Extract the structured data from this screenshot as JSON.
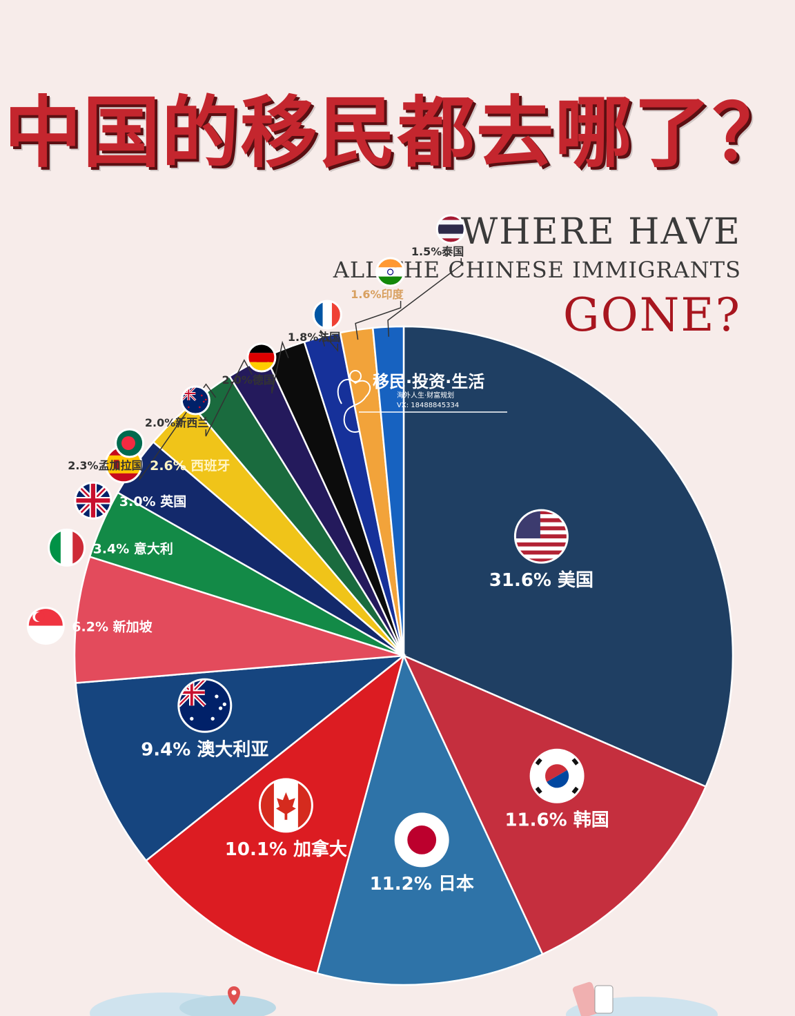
{
  "title": "中国的移民都去哪了？",
  "subtitle_line1": "WHERE HAVE",
  "subtitle_line2": "ALL THE CHINESE IMMIGRANTS",
  "subtitle_line3": "GONE?",
  "watermark": {
    "brand": "移民·投资·生活",
    "line2": "海外人生·财富规划",
    "line3": "VX: 18488845334"
  },
  "chart_data": {
    "type": "pie",
    "title": "中国的移民都去哪了？",
    "slices": [
      {
        "label": "美国",
        "value": 31.6,
        "text": "31.6%",
        "color": "#1f3f63",
        "flag": "usa-flag-icon"
      },
      {
        "label": "韩国",
        "value": 11.6,
        "text": "11.6%",
        "color": "#c52f3e",
        "flag": "korea-flag-icon"
      },
      {
        "label": "日本",
        "value": 11.2,
        "text": "11.2%",
        "color": "#2e73a8",
        "flag": "japan-flag-icon"
      },
      {
        "label": "加拿大",
        "value": 10.1,
        "text": "10.1%",
        "color": "#dc1c22",
        "flag": "canada-flag-icon"
      },
      {
        "label": "澳大利亚",
        "value": 9.4,
        "text": "9.4%",
        "color": "#16457f",
        "flag": "australia-flag-icon"
      },
      {
        "label": "新加坡",
        "value": 6.2,
        "text": "6.2%",
        "color": "#e34b5c",
        "flag": "singapore-flag-icon"
      },
      {
        "label": "意大利",
        "value": 3.4,
        "text": "3.4%",
        "color": "#138a47",
        "flag": "italy-flag-icon"
      },
      {
        "label": "英国",
        "value": 3.0,
        "text": "3.0%",
        "color": "#13296b",
        "flag": "uk-flag-icon"
      },
      {
        "label": "西班牙",
        "value": 2.6,
        "text": "2.6%",
        "color": "#f0c419",
        "flag": "spain-flag-icon"
      },
      {
        "label": "孟加拉国",
        "value": 2.3,
        "text": "2.3%",
        "color": "#1a6b3e",
        "flag": "bangladesh-flag-icon"
      },
      {
        "label": "新西兰",
        "value": 2.0,
        "text": "2.0%",
        "color": "#241a5c",
        "flag": "new-zealand-flag-icon"
      },
      {
        "label": "德国",
        "value": 2.0,
        "text": "2.0%",
        "color": "#0c0c0c",
        "flag": "germany-flag-icon"
      },
      {
        "label": "法国",
        "value": 1.8,
        "text": "1.8%",
        "color": "#16319a",
        "flag": "france-flag-icon"
      },
      {
        "label": "印度",
        "value": 1.6,
        "text": "1.6%",
        "color": "#f2a33a",
        "flag": "india-flag-icon"
      },
      {
        "label": "泰国",
        "value": 1.5,
        "text": "1.5%",
        "color": "#1762c0",
        "flag": "thailand-flag-icon"
      }
    ]
  }
}
